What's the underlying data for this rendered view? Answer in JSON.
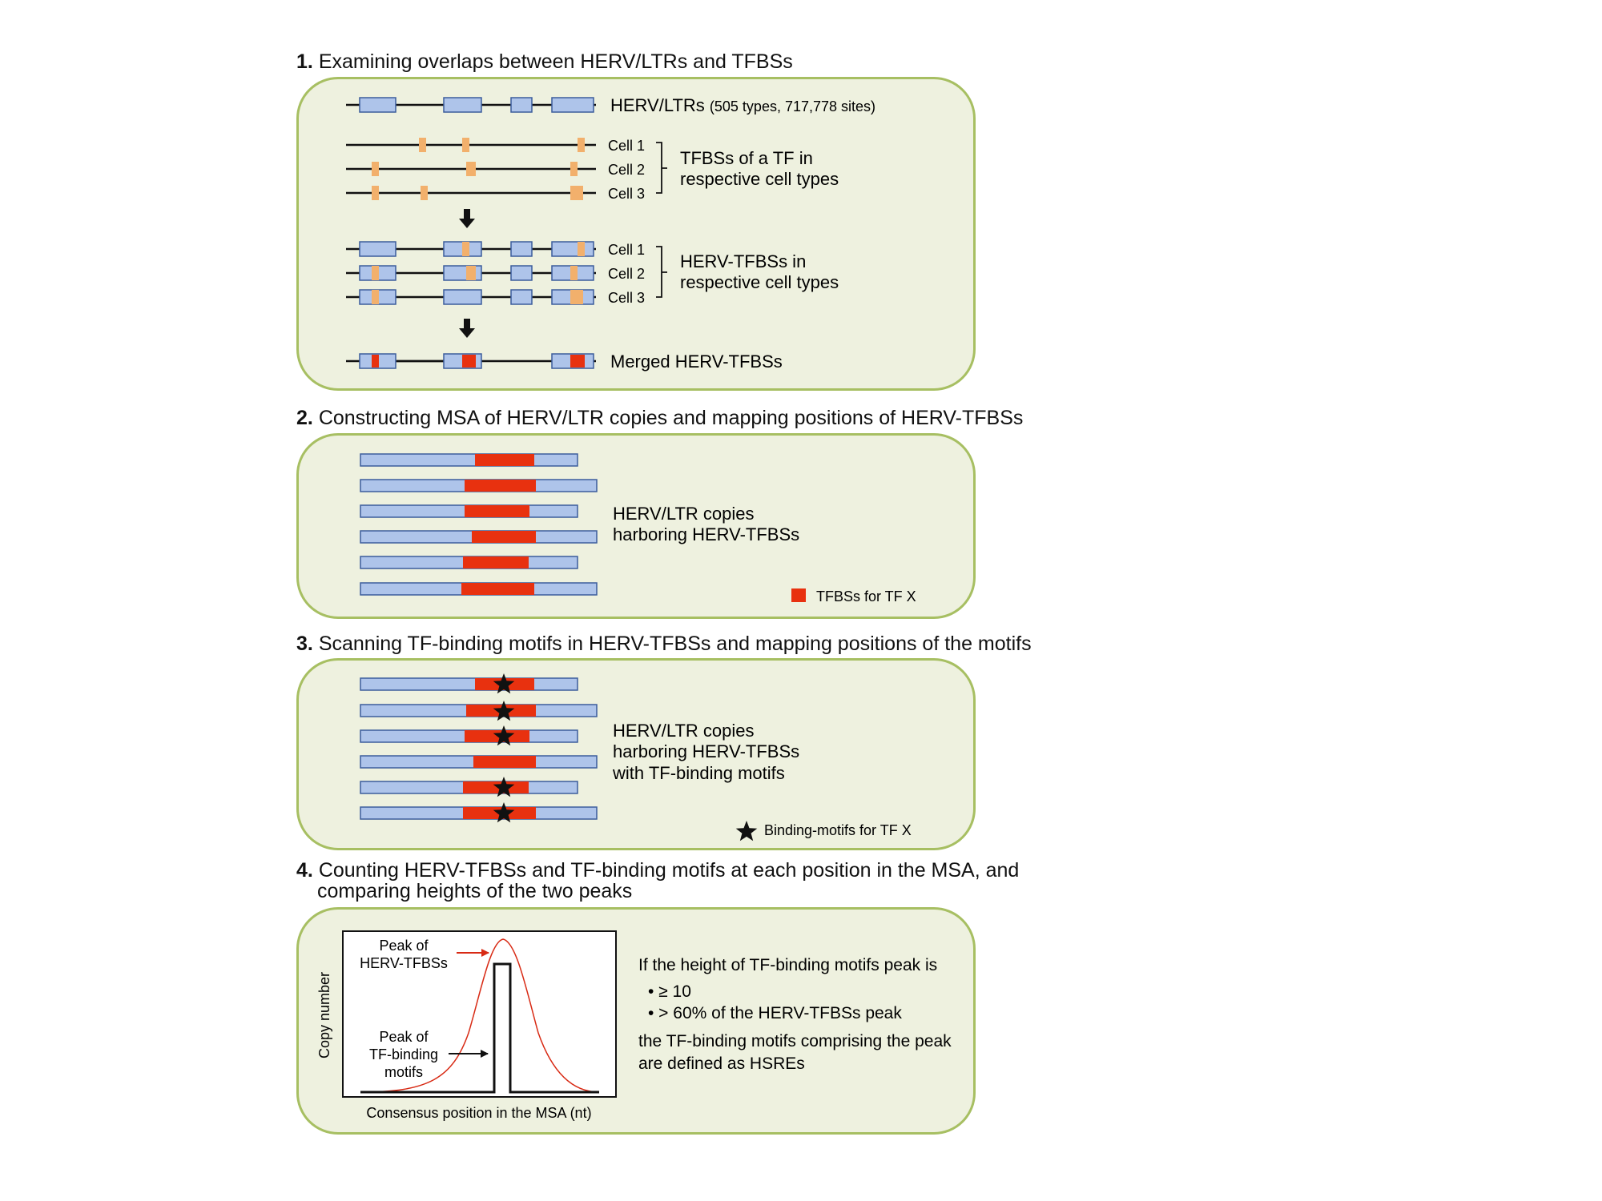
{
  "sections": [
    {
      "number": "1.",
      "title": "Examining overlaps between HERV/LTRs and TFBSs"
    },
    {
      "number": "2.",
      "title": "Constructing MSA of HERV/LTR copies and mapping positions of HERV-TFBSs"
    },
    {
      "number": "3.",
      "title": "Scanning TF-binding motifs in HERV-TFBSs and mapping positions of the motifs"
    },
    {
      "number": "4.",
      "title_line1": "Counting HERV-TFBSs and TF-binding motifs at each position in the MSA, and",
      "title_line2": "comparing heights of the two peaks"
    }
  ],
  "panel1": {
    "herv_label": "HERV/LTRs",
    "herv_counts": "(505 types, 717,778 sites)",
    "cells": [
      "Cell 1",
      "Cell 2",
      "Cell 3"
    ],
    "tfbs_label_line1": "TFBSs of a TF in",
    "tfbs_label_line2": "respective cell types",
    "herv_tfbs_label_line1": "HERV-TFBSs in",
    "herv_tfbs_label_line2": "respective cell types",
    "merged_label": "Merged HERV-TFBSs"
  },
  "panel2": {
    "label_line1": "HERV/LTR copies",
    "label_line2": "harboring HERV-TFBSs",
    "legend": "TFBSs for TF X"
  },
  "panel3": {
    "label_line1": "HERV/LTR copies",
    "label_line2": "harboring HERV-TFBSs",
    "label_line3": "with TF-binding motifs",
    "legend": "Binding-motifs for TF X"
  },
  "panel4": {
    "ylabel": "Copy number",
    "xlabel": "Consensus position  in the MSA (nt)",
    "peak_tfbs_line1": "Peak of",
    "peak_tfbs_line2": "HERV-TFBSs",
    "peak_motif_line1": "Peak of",
    "peak_motif_line2": "TF-binding",
    "peak_motif_line3": "motifs",
    "criteria_intro": "If the height of TF-binding motifs peak is",
    "criteria": [
      "• ≥ 10",
      "• > 60% of the HERV-TFBSs peak"
    ],
    "conclusion_line1": "the TF-binding motifs comprising the peak",
    "conclusion_line2": "are defined as HSREs"
  },
  "colors": {
    "panel_bg": "#eef1df",
    "panel_border": "#a7bf62",
    "herv_box": "#aec4ea",
    "herv_box_border": "#3c5d9c",
    "tfbs_orange": "#f2b06c",
    "tfbs_red": "#e8310f",
    "peak_curve": "#d82a14"
  }
}
